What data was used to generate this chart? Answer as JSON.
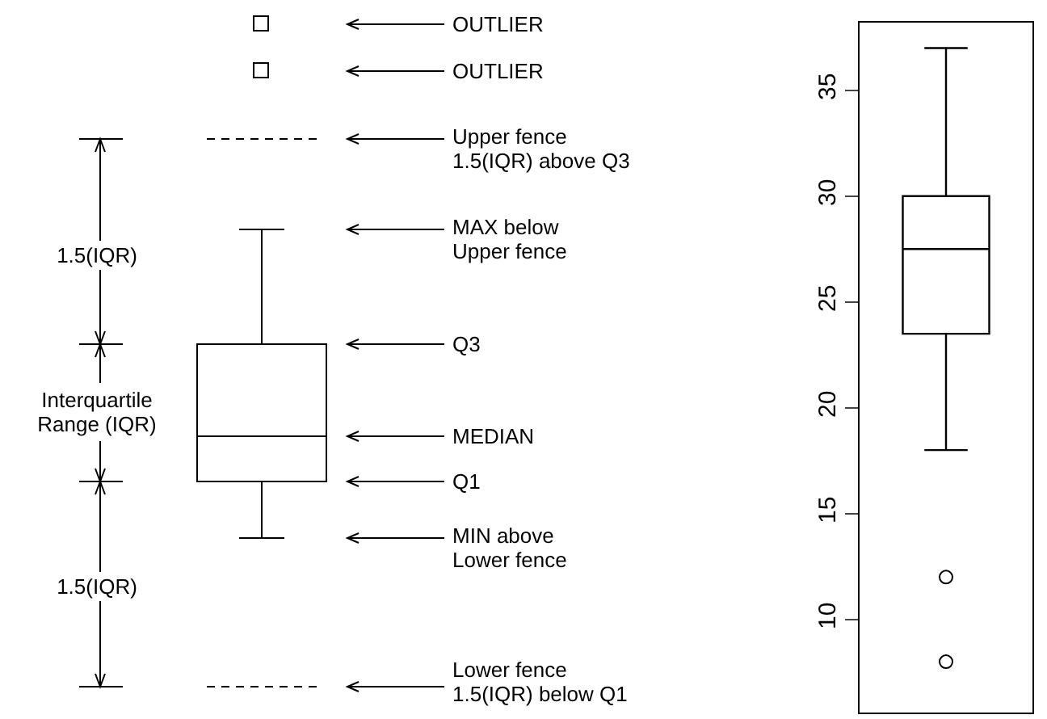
{
  "chart_data": [
    {
      "type": "other",
      "annotations": [
        "OUTLIER",
        "OUTLIER",
        "Upper fence\n1.5(IQR) above Q3",
        "MAX below\nUpper fence",
        "Q3",
        "MEDIAN",
        "Q1",
        "MIN above\nLower fence",
        "Lower fence\n1.5(IQR) below Q1",
        "1.5(IQR)",
        "Interquartile\nRange (IQR)",
        "1.5(IQR)"
      ]
    },
    {
      "type": "box",
      "categories": [
        null
      ],
      "boxes": [
        {
          "low": 18,
          "q1": 23.5,
          "median": 27.5,
          "q3": 30,
          "high": 37,
          "outliers": [
            12,
            8
          ]
        }
      ],
      "ylim": [
        5.6,
        38.2
      ],
      "yticks": [
        10,
        15,
        20,
        25,
        30,
        35
      ],
      "tick_labels": "y"
    }
  ]
}
